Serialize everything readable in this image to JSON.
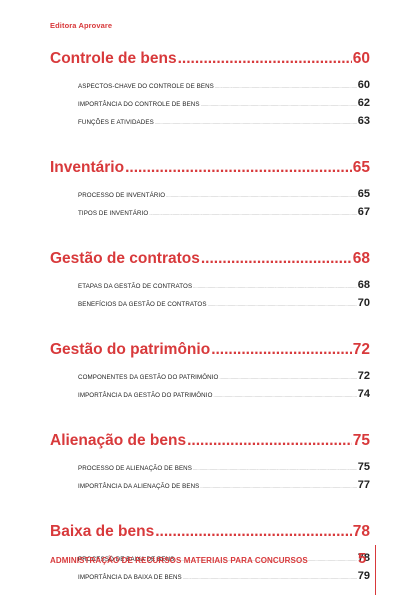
{
  "publisher": "Editora Aprovare",
  "toc": [
    {
      "title": "Controle de bens",
      "page": "60",
      "items": [
        {
          "title": "ASPECTOS-CHAVE DO CONTROLE DE BENS",
          "page": "60"
        },
        {
          "title": "IMPORTÂNCIA DO CONTROLE DE BENS",
          "page": "62"
        },
        {
          "title": "FUNÇÕES E ATIVIDADES",
          "page": "63"
        }
      ]
    },
    {
      "title": "Inventário",
      "page": "65",
      "items": [
        {
          "title": "PROCESSO DE INVENTÁRIO",
          "page": "65"
        },
        {
          "title": "TIPOS DE INVENTÁRIO",
          "page": "67"
        }
      ]
    },
    {
      "title": "Gestão de contratos",
      "page": "68",
      "items": [
        {
          "title": "ETAPAS DA GESTÃO DE CONTRATOS",
          "page": "68"
        },
        {
          "title": "BENEFÍCIOS DA GESTÃO DE CONTRATOS",
          "page": "70"
        }
      ]
    },
    {
      "title": "Gestão do patrimônio",
      "page": "72",
      "items": [
        {
          "title": "COMPONENTES DA GESTÃO DO PATRIMÔNIO",
          "page": "72"
        },
        {
          "title": "IMPORTÂNCIA DA GESTÃO DO PATRIMÔNIO",
          "page": "74"
        }
      ]
    },
    {
      "title": "Alienação de bens",
      "page": "75",
      "items": [
        {
          "title": "PROCESSO DE ALIENAÇÃO DE BENS",
          "page": "75"
        },
        {
          "title": "IMPORTÂNCIA DA ALIENAÇÃO DE BENS",
          "page": "77"
        }
      ]
    },
    {
      "title": "Baixa de bens",
      "page": "78",
      "items": [
        {
          "title": "PROCESSO DE BAIXA DE BENS",
          "page": "78"
        },
        {
          "title": "IMPORTÂNCIA DA BAIXA DE BENS",
          "page": "79"
        }
      ]
    }
  ],
  "footer": {
    "book_title": "ADMINISTRAÇÃO DE RECURSOS MATERIAIS PARA CONCURSOS",
    "page_number": "5"
  },
  "colors": {
    "accent": "#d8393b",
    "text": "#222222"
  }
}
